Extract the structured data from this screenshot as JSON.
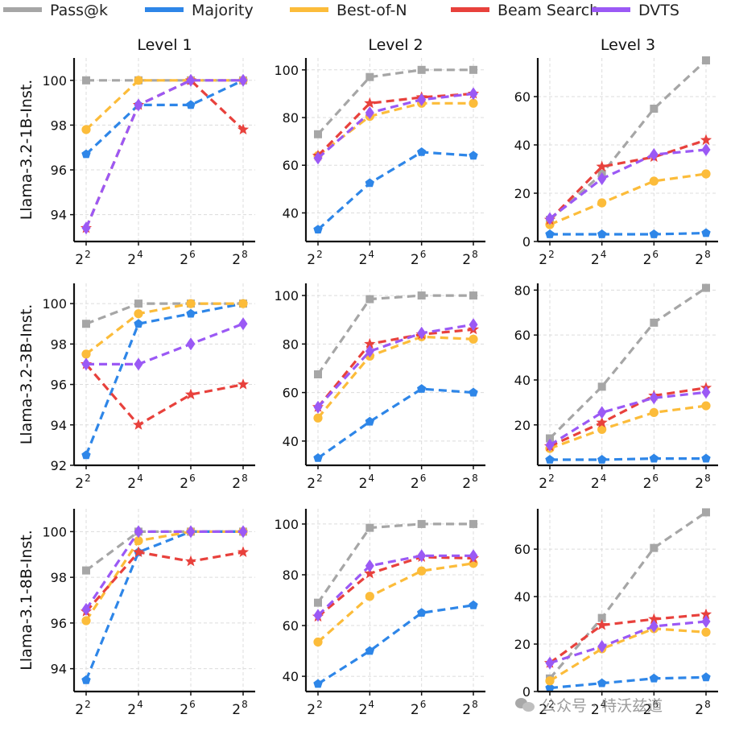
{
  "legend": {
    "position": "top",
    "entries": [
      {
        "name": "Pass@k",
        "color": "#a6a6a6",
        "marker": "square"
      },
      {
        "name": "Majority",
        "color": "#2e86e8",
        "marker": "pentagon"
      },
      {
        "name": "Best-of-N",
        "color": "#fcbc3a",
        "marker": "circle"
      },
      {
        "name": "Beam Search",
        "color": "#e8413c",
        "marker": "star"
      },
      {
        "name": "DVTS",
        "color": "#9b59f5",
        "marker": "diamond"
      }
    ]
  },
  "column_titles": [
    "Level 1",
    "Level 2",
    "Level 3"
  ],
  "row_labels": [
    "Llama-3.2-1B-Inst.",
    "Llama-3.2-3B-Inst.",
    "Llama-3.1-8B-Inst."
  ],
  "watermark": "公众号 · 特沃兹道",
  "chart_data": [
    {
      "type": "line",
      "row": 0,
      "col": 0,
      "title": "Level 1",
      "ylabel": "Llama-3.2-1B-Inst.",
      "x_exponents": [
        2,
        4,
        6,
        8
      ],
      "ylim": [
        92.8,
        101
      ],
      "yticks": [
        94,
        96,
        98,
        100
      ],
      "series": [
        {
          "name": "Pass@k",
          "values": [
            100,
            100,
            100,
            100
          ]
        },
        {
          "name": "Majority",
          "values": [
            96.7,
            98.9,
            98.9,
            100
          ]
        },
        {
          "name": "Best-of-N",
          "values": [
            97.8,
            100,
            100,
            100
          ]
        },
        {
          "name": "Beam Search",
          "values": [
            93.4,
            98.9,
            100,
            97.8
          ]
        },
        {
          "name": "DVTS",
          "values": [
            93.4,
            98.9,
            100,
            100
          ]
        }
      ]
    },
    {
      "type": "line",
      "row": 0,
      "col": 1,
      "title": "Level 2",
      "ylabel": "",
      "x_exponents": [
        2,
        4,
        6,
        8
      ],
      "ylim": [
        28,
        105
      ],
      "yticks": [
        40,
        60,
        80,
        100
      ],
      "series": [
        {
          "name": "Pass@k",
          "values": [
            73,
            97,
            100,
            100
          ]
        },
        {
          "name": "Majority",
          "values": [
            33,
            52.5,
            65.5,
            64
          ]
        },
        {
          "name": "Best-of-N",
          "values": [
            64,
            80.5,
            86,
            86
          ]
        },
        {
          "name": "Beam Search",
          "values": [
            64,
            86,
            88.5,
            90
          ]
        },
        {
          "name": "DVTS",
          "values": [
            63,
            82,
            87.5,
            90
          ]
        }
      ]
    },
    {
      "type": "line",
      "row": 0,
      "col": 2,
      "title": "Level 3",
      "ylabel": "",
      "x_exponents": [
        2,
        4,
        6,
        8
      ],
      "ylim": [
        0,
        76
      ],
      "yticks": [
        0,
        20,
        40,
        60
      ],
      "series": [
        {
          "name": "Pass@k",
          "values": [
            9,
            28,
            55,
            75
          ]
        },
        {
          "name": "Majority",
          "values": [
            3,
            3,
            3,
            3.5
          ]
        },
        {
          "name": "Best-of-N",
          "values": [
            7,
            16,
            25,
            28
          ]
        },
        {
          "name": "Beam Search",
          "values": [
            9,
            31,
            35,
            42
          ]
        },
        {
          "name": "DVTS",
          "values": [
            9.5,
            26,
            36,
            38
          ]
        }
      ]
    },
    {
      "type": "line",
      "row": 1,
      "col": 0,
      "title": "",
      "ylabel": "Llama-3.2-3B-Inst.",
      "x_exponents": [
        2,
        4,
        6,
        8
      ],
      "ylim": [
        92,
        101
      ],
      "yticks": [
        92,
        94,
        96,
        98,
        100
      ],
      "series": [
        {
          "name": "Pass@k",
          "values": [
            99,
            100,
            100,
            100
          ]
        },
        {
          "name": "Majority",
          "values": [
            92.5,
            99,
            99.5,
            100
          ]
        },
        {
          "name": "Best-of-N",
          "values": [
            97.5,
            99.5,
            100,
            100
          ]
        },
        {
          "name": "Beam Search",
          "values": [
            97,
            94,
            95.5,
            96
          ]
        },
        {
          "name": "DVTS",
          "values": [
            97,
            97,
            98,
            99
          ]
        }
      ]
    },
    {
      "type": "line",
      "row": 1,
      "col": 1,
      "title": "",
      "ylabel": "",
      "x_exponents": [
        2,
        4,
        6,
        8
      ],
      "ylim": [
        30,
        105
      ],
      "yticks": [
        40,
        60,
        80,
        100
      ],
      "series": [
        {
          "name": "Pass@k",
          "values": [
            67.5,
            98.5,
            100,
            100
          ]
        },
        {
          "name": "Majority",
          "values": [
            33,
            48,
            61.5,
            60
          ]
        },
        {
          "name": "Best-of-N",
          "values": [
            49.5,
            75,
            83,
            82
          ]
        },
        {
          "name": "Beam Search",
          "values": [
            54,
            80,
            84,
            86
          ]
        },
        {
          "name": "DVTS",
          "values": [
            54,
            77,
            84.5,
            88
          ]
        }
      ]
    },
    {
      "type": "line",
      "row": 1,
      "col": 2,
      "title": "",
      "ylabel": "",
      "x_exponents": [
        2,
        4,
        6,
        8
      ],
      "ylim": [
        2,
        83
      ],
      "yticks": [
        20,
        40,
        60,
        80
      ],
      "series": [
        {
          "name": "Pass@k",
          "values": [
            14,
            37,
            65.5,
            81
          ]
        },
        {
          "name": "Majority",
          "values": [
            4.5,
            4.5,
            5,
            5
          ]
        },
        {
          "name": "Best-of-N",
          "values": [
            9.5,
            18,
            25.5,
            28.5
          ]
        },
        {
          "name": "Beam Search",
          "values": [
            10.5,
            21,
            33,
            36.5
          ]
        },
        {
          "name": "DVTS",
          "values": [
            11,
            25.5,
            32,
            34.5
          ]
        }
      ]
    },
    {
      "type": "line",
      "row": 2,
      "col": 0,
      "title": "",
      "ylabel": "Llama-3.1-8B-Inst.",
      "x_exponents": [
        2,
        4,
        6,
        8
      ],
      "ylim": [
        93,
        101
      ],
      "yticks": [
        94,
        96,
        98,
        100
      ],
      "series": [
        {
          "name": "Pass@k",
          "values": [
            98.3,
            100,
            100,
            100
          ]
        },
        {
          "name": "Majority",
          "values": [
            93.5,
            99.1,
            100,
            100
          ]
        },
        {
          "name": "Best-of-N",
          "values": [
            96.1,
            99.6,
            100,
            100
          ]
        },
        {
          "name": "Beam Search",
          "values": [
            96.5,
            99.1,
            98.7,
            99.1
          ]
        },
        {
          "name": "DVTS",
          "values": [
            96.6,
            100,
            100,
            100
          ]
        }
      ]
    },
    {
      "type": "line",
      "row": 2,
      "col": 1,
      "title": "",
      "ylabel": "",
      "x_exponents": [
        2,
        4,
        6,
        8
      ],
      "ylim": [
        34,
        106
      ],
      "yticks": [
        40,
        60,
        80,
        100
      ],
      "series": [
        {
          "name": "Pass@k",
          "values": [
            69,
            98.5,
            100,
            100
          ]
        },
        {
          "name": "Majority",
          "values": [
            37,
            50,
            65,
            68
          ]
        },
        {
          "name": "Best-of-N",
          "values": [
            53.5,
            71.5,
            81.5,
            84.5
          ]
        },
        {
          "name": "Beam Search",
          "values": [
            63.5,
            80.5,
            87,
            86.5
          ]
        },
        {
          "name": "DVTS",
          "values": [
            64,
            83.5,
            87.5,
            87.5
          ]
        }
      ]
    },
    {
      "type": "line",
      "row": 2,
      "col": 2,
      "title": "",
      "ylabel": "",
      "x_exponents": [
        2,
        4,
        6,
        8
      ],
      "ylim": [
        0,
        77
      ],
      "yticks": [
        0,
        20,
        40,
        60
      ],
      "series": [
        {
          "name": "Pass@k",
          "values": [
            5.5,
            31,
            60.5,
            75.5
          ]
        },
        {
          "name": "Majority",
          "values": [
            1.5,
            3.5,
            5.5,
            6
          ]
        },
        {
          "name": "Best-of-N",
          "values": [
            4.5,
            18,
            26.5,
            25
          ]
        },
        {
          "name": "Beam Search",
          "values": [
            12,
            28,
            30.5,
            32.5
          ]
        },
        {
          "name": "DVTS",
          "values": [
            12,
            19,
            27.5,
            29.5
          ]
        }
      ]
    }
  ]
}
